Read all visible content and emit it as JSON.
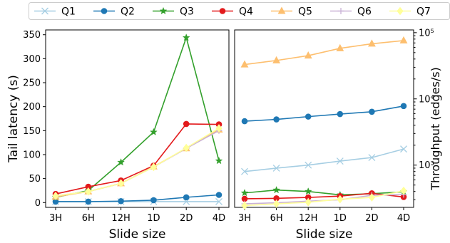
{
  "legend": {
    "entries": [
      {
        "name": "Q1",
        "color": "#a6cee3",
        "marker": "x"
      },
      {
        "name": "Q2",
        "color": "#1f78b4",
        "marker": "circle"
      },
      {
        "name": "Q3",
        "color": "#33a02c",
        "marker": "star"
      },
      {
        "name": "Q4",
        "color": "#e31a1c",
        "marker": "circle"
      },
      {
        "name": "Q5",
        "color": "#fdbf6f",
        "marker": "triangle"
      },
      {
        "name": "Q6",
        "color": "#cab2d6",
        "marker": "plus"
      },
      {
        "name": "Q7",
        "color": "#ffff99",
        "marker": "diamond"
      }
    ]
  },
  "chart_data": [
    {
      "type": "line",
      "xlabel": "Slide size",
      "ylabel": "Tail latency (s)",
      "categories": [
        "3H",
        "6H",
        "12H",
        "1D",
        "2D",
        "4D"
      ],
      "ylim": [
        -10,
        360
      ],
      "yticks": [
        0,
        50,
        100,
        150,
        200,
        250,
        300,
        350
      ],
      "grid": false,
      "series": [
        {
          "name": "Q1",
          "values": [
            2,
            2,
            2,
            2,
            2,
            2
          ]
        },
        {
          "name": "Q2",
          "values": [
            2,
            2,
            3,
            5,
            11,
            16
          ]
        },
        {
          "name": "Q3",
          "values": [
            11,
            25,
            84,
            147,
            344,
            87
          ]
        },
        {
          "name": "Q4",
          "values": [
            18,
            33,
            46,
            77,
            164,
            163
          ]
        },
        {
          "name": "Q5",
          "values": [
            12,
            23,
            40,
            75,
            113,
            152
          ]
        },
        {
          "name": "Q6",
          "values": [
            14,
            23,
            40,
            74,
            113,
            150
          ]
        },
        {
          "name": "Q7",
          "values": [
            14,
            23,
            40,
            74,
            114,
            155
          ]
        }
      ]
    },
    {
      "type": "line",
      "xlabel": "Slide size",
      "ylabel": "Throughput (edges/s)",
      "yscale": "log",
      "categories": [
        "3H",
        "6H",
        "12H",
        "1D",
        "2D",
        "4D"
      ],
      "ylim": [
        230,
        110000
      ],
      "yticks": [
        {
          "value": 1000,
          "label": "10³"
        },
        {
          "value": 10000,
          "label": "10⁴"
        },
        {
          "value": 100000,
          "label": "10⁵"
        }
      ],
      "grid": false,
      "series": [
        {
          "name": "Q1",
          "values": [
            800,
            900,
            1000,
            1150,
            1300,
            1750
          ]
        },
        {
          "name": "Q2",
          "values": [
            4600,
            4900,
            5400,
            5900,
            6400,
            7800
          ]
        },
        {
          "name": "Q3",
          "values": [
            380,
            420,
            400,
            355,
            370,
            395
          ]
        },
        {
          "name": "Q4",
          "values": [
            310,
            315,
            325,
            340,
            375,
            330
          ]
        },
        {
          "name": "Q5",
          "values": [
            33000,
            38000,
            45000,
            58000,
            68000,
            76000
          ]
        },
        {
          "name": "Q6",
          "values": [
            260,
            270,
            285,
            300,
            350,
            360
          ]
        },
        {
          "name": "Q7",
          "values": [
            245,
            260,
            275,
            305,
            325,
            410
          ]
        }
      ]
    }
  ]
}
